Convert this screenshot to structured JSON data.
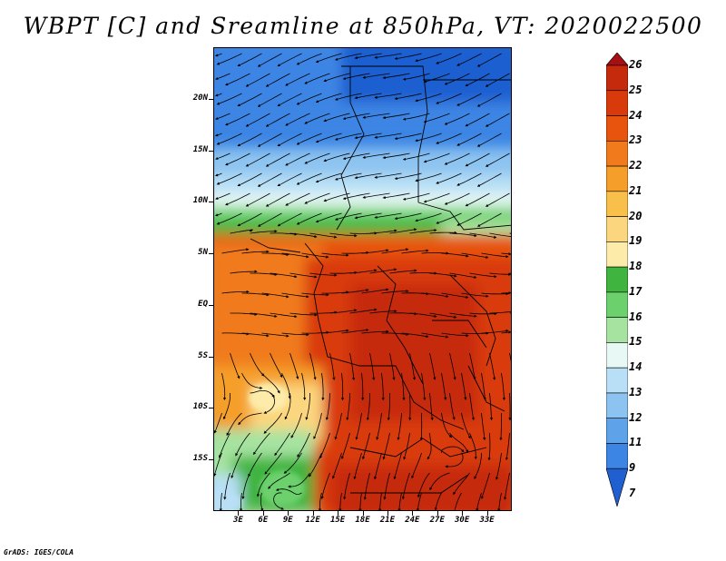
{
  "title": "WBPT [C] and Sreamline at 850hPa, VT: 2020022500",
  "credit": "GrADS: IGES/COLA",
  "map": {
    "projection": "lat-lon",
    "lon_range": [
      0,
      36
    ],
    "lat_range": [
      -20,
      25
    ],
    "lat_ticks": [
      {
        "label": "20N",
        "value": 20
      },
      {
        "label": "15N",
        "value": 15
      },
      {
        "label": "10N",
        "value": 10
      },
      {
        "label": "5N",
        "value": 5
      },
      {
        "label": "EQ",
        "value": 0
      },
      {
        "label": "5S",
        "value": -5
      },
      {
        "label": "10S",
        "value": -10
      },
      {
        "label": "15S",
        "value": -15
      }
    ],
    "lon_ticks": [
      {
        "label": "3E",
        "value": 3
      },
      {
        "label": "6E",
        "value": 6
      },
      {
        "label": "9E",
        "value": 9
      },
      {
        "label": "12E",
        "value": 12
      },
      {
        "label": "15E",
        "value": 15
      },
      {
        "label": "18E",
        "value": 18
      },
      {
        "label": "21E",
        "value": 21
      },
      {
        "label": "24E",
        "value": 24
      },
      {
        "label": "27E",
        "value": 27
      },
      {
        "label": "30E",
        "value": 30
      },
      {
        "label": "33E",
        "value": 33
      }
    ],
    "streamline_color": "#000000",
    "boundary_color": "#000000"
  },
  "colorbar": {
    "labels": [
      "26",
      "25",
      "24",
      "23",
      "22",
      "21",
      "20",
      "19",
      "18",
      "17",
      "16",
      "15",
      "14",
      "13",
      "12",
      "11",
      "9",
      "7"
    ],
    "colors": [
      "#a50f15",
      "#c62a0c",
      "#d93a0b",
      "#e8540e",
      "#f07a1c",
      "#f59e2a",
      "#f8c04a",
      "#fbd67e",
      "#fdebaa",
      "#3fb43f",
      "#6cd06c",
      "#a6e3a0",
      "#e8f8f5",
      "#b8dff5",
      "#8cc3f0",
      "#5ea2ea",
      "#3c85e4",
      "#1f5fd0"
    ]
  }
}
